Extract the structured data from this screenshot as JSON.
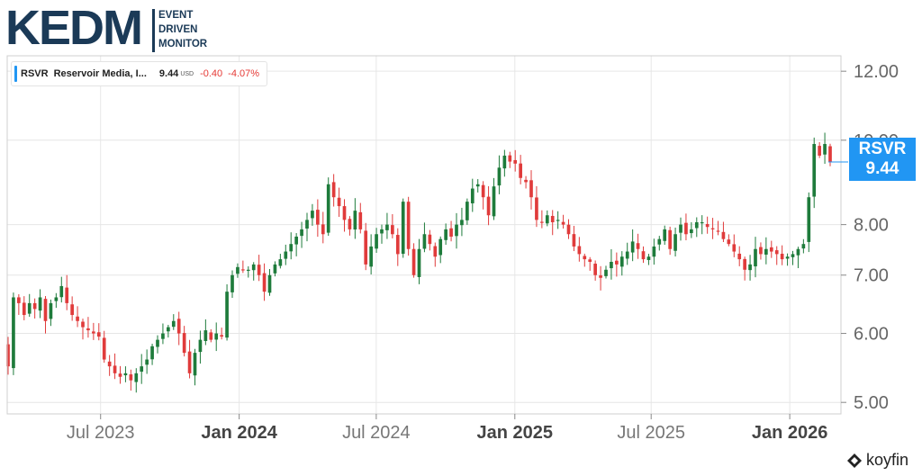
{
  "logo": {
    "main": "KEDM",
    "line1": "EVENT",
    "line2": "DRIVEN",
    "line3": "MONITOR"
  },
  "legend": {
    "ticker": "RSVR",
    "name": "Reservoir Media, I...",
    "price": "9.44",
    "currency": "USD",
    "change": "-0.40",
    "change_pct": "-4.07%"
  },
  "price_tag": {
    "ticker": "RSVR",
    "price": "9.44"
  },
  "watermark": "koyfin",
  "colors": {
    "up": "#1e7b3b",
    "down": "#e03b3b",
    "accent": "#2196f3",
    "grid": "#e6e6e6",
    "axis": "#333333"
  },
  "chart_data": {
    "type": "candlestick",
    "y_scale": "log",
    "ylim": [
      4.85,
      12.5
    ],
    "y_ticks": [
      5.0,
      6.0,
      7.0,
      8.0,
      10.0,
      12.0
    ],
    "y_tick_labels": [
      "5.00",
      "6.00",
      "7.00",
      "8.00",
      "10.00",
      "12.00"
    ],
    "x_ticks": [
      {
        "date": "2023-07-01",
        "label": "Jul 2023",
        "bold": false
      },
      {
        "date": "2024-01-01",
        "label": "Jan 2024",
        "bold": true
      },
      {
        "date": "2024-07-01",
        "label": "Jul 2024",
        "bold": false
      },
      {
        "date": "2025-01-01",
        "label": "Jan 2025",
        "bold": true
      },
      {
        "date": "2025-07-01",
        "label": "Jul 2025",
        "bold": false
      },
      {
        "date": "2026-01-01",
        "label": "Jan 2026",
        "bold": true
      }
    ],
    "x_range": [
      "2023-02-27",
      "2026-03-10"
    ],
    "last_price": 9.44,
    "close_series": [
      5.5,
      6.6,
      6.5,
      6.3,
      6.5,
      6.4,
      6.6,
      6.2,
      6.5,
      6.6,
      6.8,
      6.5,
      6.3,
      6.2,
      6.1,
      6.05,
      6.0,
      5.95,
      5.6,
      5.5,
      5.4,
      5.35,
      5.4,
      5.3,
      5.4,
      5.5,
      5.6,
      5.8,
      5.9,
      6.0,
      6.1,
      6.2,
      6.0,
      5.7,
      5.4,
      5.7,
      5.9,
      6.05,
      5.9,
      6.0,
      5.95,
      6.7,
      7.0,
      7.15,
      7.1,
      7.1,
      7.2,
      7.0,
      6.7,
      7.0,
      7.2,
      7.3,
      7.45,
      7.6,
      7.75,
      7.9,
      8.1,
      8.3,
      8.0,
      7.8,
      8.9,
      8.6,
      8.4,
      8.1,
      7.9,
      8.3,
      7.9,
      7.2,
      7.55,
      7.8,
      7.9,
      8.0,
      7.8,
      7.4,
      8.5,
      7.5,
      7.0,
      7.5,
      7.8,
      7.6,
      7.35,
      7.7,
      7.9,
      7.75,
      8.0,
      8.1,
      8.5,
      8.8,
      8.9,
      8.6,
      8.2,
      8.85,
      9.3,
      9.6,
      9.45,
      9.4,
      9.05,
      8.95,
      8.6,
      8.1,
      8.05,
      8.2,
      8.05,
      8.1,
      8.0,
      7.8,
      7.55,
      7.4,
      7.3,
      7.25,
      7.0,
      6.95,
      7.1,
      7.25,
      7.2,
      7.35,
      7.45,
      7.65,
      7.5,
      7.3,
      7.35,
      7.55,
      7.7,
      7.9,
      7.5,
      7.8,
      8.0,
      7.8,
      7.9,
      8.05,
      8.05,
      7.95,
      7.9,
      7.85,
      7.7,
      7.6,
      7.45,
      7.3,
      7.1,
      7.2,
      7.5,
      7.4,
      7.5,
      7.45,
      7.4,
      7.3,
      7.35,
      7.4,
      7.5,
      7.6,
      8.6,
      9.9,
      9.6,
      9.9,
      9.44
    ]
  }
}
